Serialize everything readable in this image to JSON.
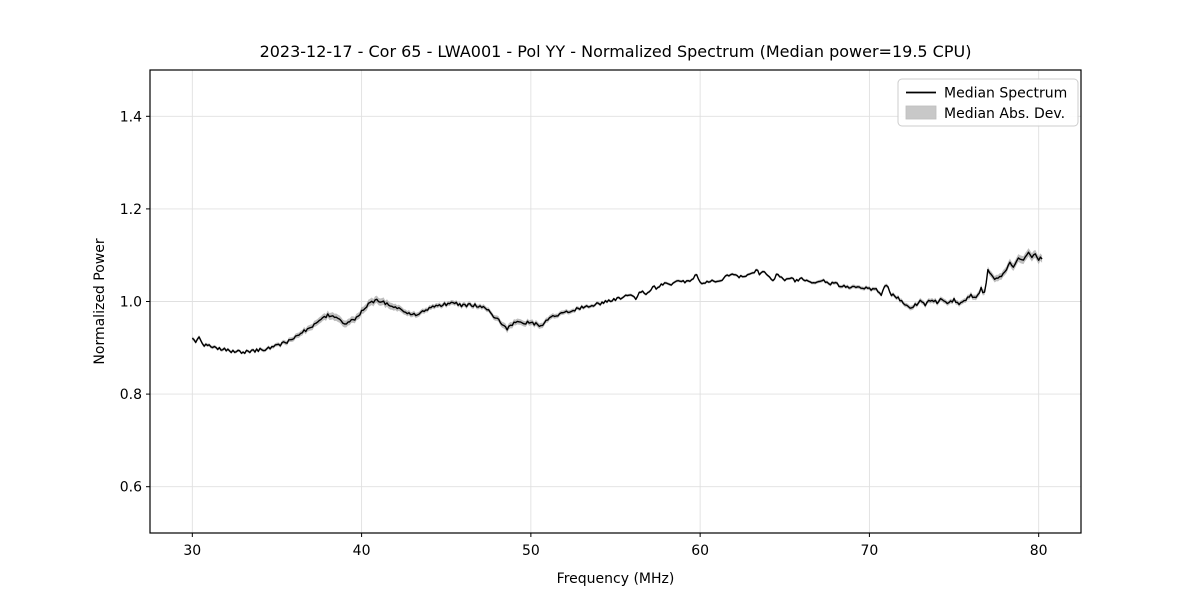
{
  "figure": {
    "background": "#ffffff"
  },
  "colors": {
    "grid": "#e0e0e0",
    "spine": "#000000",
    "tick": "#000000",
    "legend_border": "#cccccc",
    "legend_background": "#ffffff",
    "line": "#000000",
    "band": "#808080"
  },
  "chart_data": {
    "type": "line",
    "title": "2023-12-17 - Cor 65 - LWA001 - Pol YY - Normalized Spectrum (Median power=19.5 CPU)",
    "xlabel": "Frequency (MHz)",
    "ylabel": "Normalized Power",
    "xlim": [
      27.5,
      82.5
    ],
    "ylim": [
      0.5,
      1.5
    ],
    "xticks": [
      30,
      40,
      50,
      60,
      70,
      80
    ],
    "yticks": [
      0.6,
      0.8,
      1.0,
      1.2,
      1.4
    ],
    "grid": true,
    "legend": {
      "position": "upper right",
      "entries": [
        {
          "label": "Median Spectrum",
          "type": "line",
          "color": "#000000"
        },
        {
          "label": "Median Abs. Dev.",
          "type": "patch",
          "color": "#c8c8c8"
        }
      ]
    },
    "noise_amplitude": 0.0035,
    "sample_step_mhz": 0.1,
    "series": [
      {
        "name": "Median Spectrum",
        "style": "line",
        "color": "#000000",
        "points": [
          [
            30.0,
            0.918
          ],
          [
            30.2,
            0.912
          ],
          [
            30.4,
            0.921
          ],
          [
            30.7,
            0.907
          ],
          [
            31.0,
            0.904
          ],
          [
            31.5,
            0.899
          ],
          [
            32.0,
            0.895
          ],
          [
            32.5,
            0.892
          ],
          [
            33.0,
            0.89
          ],
          [
            33.4,
            0.892
          ],
          [
            33.8,
            0.894
          ],
          [
            34.2,
            0.897
          ],
          [
            34.6,
            0.899
          ],
          [
            35.0,
            0.905
          ],
          [
            35.5,
            0.911
          ],
          [
            36.0,
            0.92
          ],
          [
            36.4,
            0.933
          ],
          [
            36.8,
            0.94
          ],
          [
            37.2,
            0.95
          ],
          [
            37.6,
            0.962
          ],
          [
            38.0,
            0.971
          ],
          [
            38.3,
            0.967
          ],
          [
            38.7,
            0.96
          ],
          [
            39.0,
            0.951
          ],
          [
            39.3,
            0.958
          ],
          [
            39.6,
            0.961
          ],
          [
            39.9,
            0.974
          ],
          [
            40.2,
            0.986
          ],
          [
            40.5,
            0.996
          ],
          [
            40.9,
            1.003
          ],
          [
            41.2,
            1.0
          ],
          [
            41.6,
            0.994
          ],
          [
            42.0,
            0.987
          ],
          [
            42.4,
            0.98
          ],
          [
            42.8,
            0.975
          ],
          [
            43.2,
            0.972
          ],
          [
            43.6,
            0.978
          ],
          [
            44.0,
            0.985
          ],
          [
            44.5,
            0.992
          ],
          [
            45.0,
            0.994
          ],
          [
            45.5,
            0.996
          ],
          [
            46.0,
            0.991
          ],
          [
            46.5,
            0.993
          ],
          [
            47.0,
            0.989
          ],
          [
            47.4,
            0.985
          ],
          [
            47.8,
            0.968
          ],
          [
            48.2,
            0.955
          ],
          [
            48.6,
            0.94
          ],
          [
            48.9,
            0.951
          ],
          [
            49.2,
            0.955
          ],
          [
            49.6,
            0.953
          ],
          [
            50.0,
            0.956
          ],
          [
            50.3,
            0.951
          ],
          [
            50.6,
            0.946
          ],
          [
            50.9,
            0.958
          ],
          [
            51.2,
            0.965
          ],
          [
            51.7,
            0.972
          ],
          [
            52.3,
            0.98
          ],
          [
            52.9,
            0.986
          ],
          [
            53.5,
            0.992
          ],
          [
            54.1,
            0.996
          ],
          [
            54.7,
            1.003
          ],
          [
            55.3,
            1.008
          ],
          [
            55.9,
            1.016
          ],
          [
            56.2,
            1.008
          ],
          [
            56.5,
            1.021
          ],
          [
            56.9,
            1.016
          ],
          [
            57.2,
            1.032
          ],
          [
            57.5,
            1.029
          ],
          [
            57.9,
            1.04
          ],
          [
            58.2,
            1.036
          ],
          [
            58.5,
            1.044
          ],
          [
            59.0,
            1.042
          ],
          [
            59.4,
            1.046
          ],
          [
            59.8,
            1.057
          ],
          [
            60.1,
            1.038
          ],
          [
            60.4,
            1.044
          ],
          [
            60.8,
            1.046
          ],
          [
            61.2,
            1.043
          ],
          [
            61.5,
            1.053
          ],
          [
            61.9,
            1.057
          ],
          [
            62.3,
            1.054
          ],
          [
            62.7,
            1.056
          ],
          [
            63.0,
            1.06
          ],
          [
            63.3,
            1.067
          ],
          [
            63.5,
            1.061
          ],
          [
            63.7,
            1.066
          ],
          [
            64.0,
            1.058
          ],
          [
            64.3,
            1.048
          ],
          [
            64.6,
            1.06
          ],
          [
            64.9,
            1.047
          ],
          [
            65.2,
            1.051
          ],
          [
            65.6,
            1.045
          ],
          [
            66.0,
            1.049
          ],
          [
            66.4,
            1.043
          ],
          [
            66.8,
            1.041
          ],
          [
            67.2,
            1.045
          ],
          [
            67.6,
            1.039
          ],
          [
            68.0,
            1.038
          ],
          [
            68.4,
            1.034
          ],
          [
            68.8,
            1.032
          ],
          [
            69.2,
            1.031
          ],
          [
            69.6,
            1.03
          ],
          [
            70.0,
            1.028
          ],
          [
            70.4,
            1.025
          ],
          [
            70.7,
            1.015
          ],
          [
            71.0,
            1.037
          ],
          [
            71.3,
            1.016
          ],
          [
            71.6,
            1.01
          ],
          [
            72.0,
            0.996
          ],
          [
            72.3,
            0.99
          ],
          [
            72.5,
            0.986
          ],
          [
            72.8,
            0.994
          ],
          [
            73.0,
            1.001
          ],
          [
            73.3,
            0.993
          ],
          [
            73.6,
            1.003
          ],
          [
            74.0,
            0.998
          ],
          [
            74.3,
            1.006
          ],
          [
            74.6,
            0.993
          ],
          [
            75.0,
            1.003
          ],
          [
            75.3,
            0.997
          ],
          [
            75.6,
            1.0
          ],
          [
            76.0,
            1.014
          ],
          [
            76.3,
            1.006
          ],
          [
            76.6,
            1.027
          ],
          [
            76.8,
            1.018
          ],
          [
            77.0,
            1.066
          ],
          [
            77.3,
            1.053
          ],
          [
            77.6,
            1.047
          ],
          [
            78.0,
            1.064
          ],
          [
            78.3,
            1.084
          ],
          [
            78.5,
            1.076
          ],
          [
            78.8,
            1.096
          ],
          [
            79.1,
            1.089
          ],
          [
            79.4,
            1.108
          ],
          [
            79.6,
            1.097
          ],
          [
            79.8,
            1.104
          ],
          [
            80.0,
            1.091
          ],
          [
            80.2,
            1.095
          ]
        ]
      },
      {
        "name": "Median Abs. Dev.",
        "style": "band",
        "color": "#808080",
        "opacity": 0.5,
        "halfwidth_points": [
          [
            30.0,
            0.004
          ],
          [
            33.0,
            0.003
          ],
          [
            35.0,
            0.004
          ],
          [
            36.5,
            0.006
          ],
          [
            37.5,
            0.007
          ],
          [
            38.5,
            0.008
          ],
          [
            39.5,
            0.007
          ],
          [
            40.5,
            0.008
          ],
          [
            41.5,
            0.008
          ],
          [
            42.5,
            0.006
          ],
          [
            44.0,
            0.005
          ],
          [
            46.0,
            0.005
          ],
          [
            47.5,
            0.005
          ],
          [
            48.6,
            0.007
          ],
          [
            49.5,
            0.006
          ],
          [
            50.5,
            0.006
          ],
          [
            51.5,
            0.005
          ],
          [
            53.0,
            0.004
          ],
          [
            55.0,
            0.003
          ],
          [
            57.0,
            0.003
          ],
          [
            60.0,
            0.003
          ],
          [
            63.0,
            0.003
          ],
          [
            66.0,
            0.003
          ],
          [
            69.0,
            0.004
          ],
          [
            71.0,
            0.004
          ],
          [
            72.5,
            0.005
          ],
          [
            74.0,
            0.005
          ],
          [
            75.5,
            0.005
          ],
          [
            76.5,
            0.006
          ],
          [
            77.5,
            0.007
          ],
          [
            78.5,
            0.008
          ],
          [
            79.5,
            0.009
          ],
          [
            80.2,
            0.008
          ]
        ]
      }
    ]
  }
}
